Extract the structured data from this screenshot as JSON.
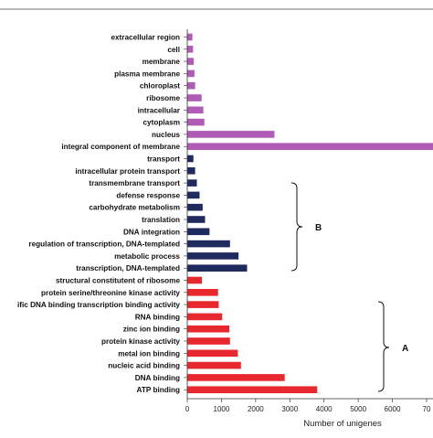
{
  "chart_data": {
    "type": "bar",
    "orientation": "horizontal",
    "xlabel": "Number of unigenes",
    "x_ticks": [
      "0",
      "1000",
      "2000",
      "3000",
      "4000",
      "5000",
      "6000",
      "70"
    ],
    "xlim": [
      0,
      7000
    ],
    "grid": false,
    "categories": [
      "extracellular region",
      "cell",
      "membrane",
      "plasma membrane",
      "chloroplast",
      "ribosome",
      "intracellular",
      "cytoplasm",
      "nucleus",
      "integral component of membrane",
      "transport",
      "intracellular protein transport",
      "transmembrane transport",
      "defense response",
      "carbohydrate metabolism",
      "translation",
      "DNA integration",
      "regulation of transcription, DNA-templated",
      "metabolic process",
      "transcription, DNA-templated",
      "structural constitutent of ribosome",
      "protein serine/threonine kinase activity",
      "ific DNA binding transcription binding activity",
      "RNA binding",
      "zinc ion binding",
      "protein kinase activity",
      "metal ion binding",
      "nucleic acid binding",
      "DNA binding",
      "ATP binding"
    ],
    "values": [
      150,
      170,
      190,
      210,
      230,
      420,
      470,
      500,
      2550,
      7200,
      180,
      230,
      280,
      360,
      450,
      520,
      650,
      1250,
      1500,
      1750,
      430,
      900,
      920,
      1020,
      1230,
      1250,
      1480,
      1570,
      2850,
      3800
    ],
    "series_groups": [
      {
        "label": "",
        "color": "#b05bb5",
        "start": 0,
        "end": 9
      },
      {
        "label": "B",
        "color": "#1f2b5e",
        "start": 10,
        "end": 19
      },
      {
        "label": "A",
        "color": "#e8282f",
        "start": 20,
        "end": 29
      }
    ]
  }
}
